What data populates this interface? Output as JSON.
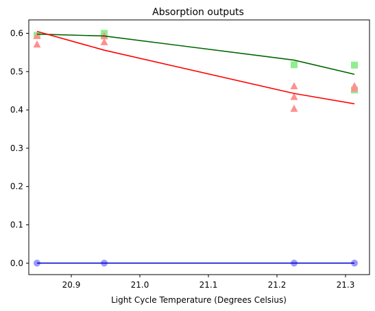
{
  "chart_data": {
    "type": "scatter",
    "title": "Absorption outputs",
    "xlabel": "Light Cycle Temperature (Degrees Celsius)",
    "ylabel": "",
    "xlim": [
      20.838,
      21.335
    ],
    "ylim": [
      -0.03,
      0.635
    ],
    "xticks": [
      20.9,
      21.0,
      21.1,
      21.2,
      21.3
    ],
    "xtick_labels": [
      "20.9",
      "21.0",
      "21.1",
      "21.2",
      "21.3"
    ],
    "yticks": [
      0.0,
      0.1,
      0.2,
      0.3,
      0.4,
      0.5,
      0.6
    ],
    "ytick_labels": [
      "0.0",
      "0.1",
      "0.2",
      "0.3",
      "0.4",
      "0.5",
      "0.6"
    ],
    "grid": false,
    "series": [
      {
        "kind": "scatter",
        "marker": "square",
        "color": "#90ee90",
        "points": [
          {
            "x": 20.85,
            "y": 0.595
          },
          {
            "x": 20.948,
            "y": 0.6
          },
          {
            "x": 20.948,
            "y": 0.593
          },
          {
            "x": 21.225,
            "y": 0.518
          },
          {
            "x": 21.313,
            "y": 0.517
          },
          {
            "x": 21.313,
            "y": 0.452
          }
        ]
      },
      {
        "kind": "line",
        "color": "#006400",
        "points": [
          {
            "x": 20.85,
            "y": 0.598
          },
          {
            "x": 20.948,
            "y": 0.593
          },
          {
            "x": 21.225,
            "y": 0.53
          },
          {
            "x": 21.313,
            "y": 0.493
          }
        ]
      },
      {
        "kind": "scatter",
        "marker": "triangle",
        "color": "#ff9090",
        "points": [
          {
            "x": 20.85,
            "y": 0.593
          },
          {
            "x": 20.85,
            "y": 0.571
          },
          {
            "x": 20.948,
            "y": 0.593
          },
          {
            "x": 20.948,
            "y": 0.577
          },
          {
            "x": 21.225,
            "y": 0.462
          },
          {
            "x": 21.225,
            "y": 0.434
          },
          {
            "x": 21.225,
            "y": 0.403
          },
          {
            "x": 21.313,
            "y": 0.462
          },
          {
            "x": 21.313,
            "y": 0.456
          }
        ]
      },
      {
        "kind": "line",
        "color": "#ff0000",
        "points": [
          {
            "x": 20.85,
            "y": 0.605
          },
          {
            "x": 20.948,
            "y": 0.556
          },
          {
            "x": 21.225,
            "y": 0.443
          },
          {
            "x": 21.313,
            "y": 0.416
          }
        ]
      },
      {
        "kind": "scatter",
        "marker": "circle",
        "color": "#9999ff",
        "points": [
          {
            "x": 20.85,
            "y": 0.0
          },
          {
            "x": 20.948,
            "y": 0.0
          },
          {
            "x": 21.225,
            "y": 0.0
          },
          {
            "x": 21.313,
            "y": 0.0
          }
        ]
      },
      {
        "kind": "line",
        "color": "#0000cd",
        "points": [
          {
            "x": 20.85,
            "y": 0.0
          },
          {
            "x": 20.948,
            "y": 0.0
          },
          {
            "x": 21.225,
            "y": 0.0
          },
          {
            "x": 21.313,
            "y": 0.0
          }
        ]
      }
    ]
  }
}
